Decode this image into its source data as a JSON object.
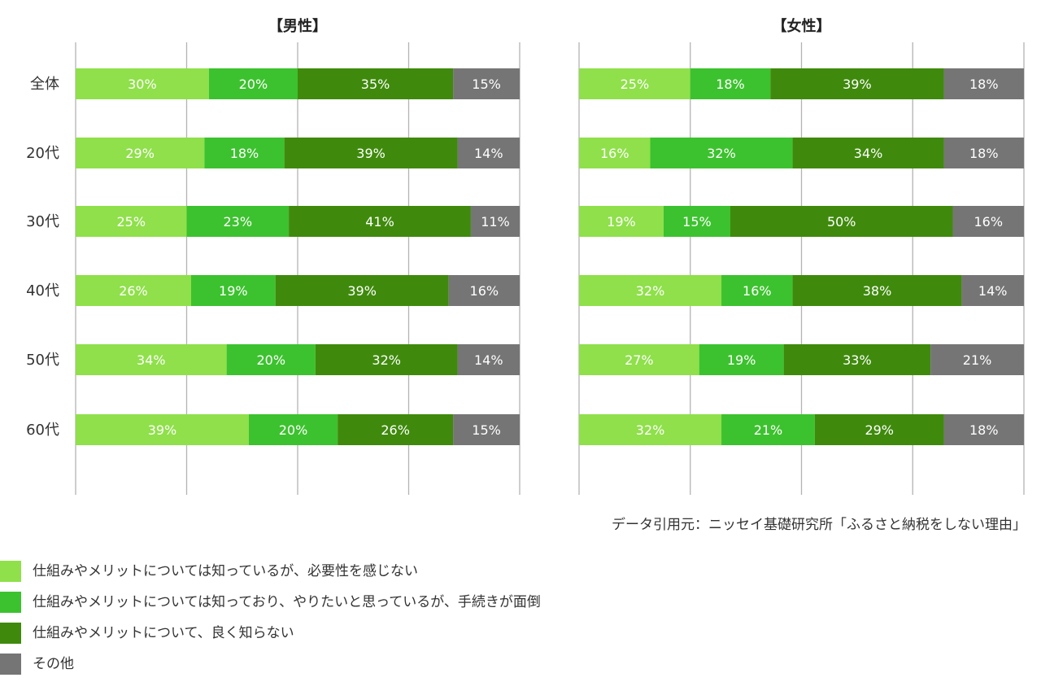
{
  "chart_data": {
    "type": "bar",
    "orientation": "horizontal-stacked-100",
    "categories": [
      "全体",
      "20代",
      "30代",
      "40代",
      "50代",
      "60代"
    ],
    "series_colors": [
      "#8fe04a",
      "#3cc22e",
      "#3f8a0c",
      "#757575"
    ],
    "legend": [
      "仕組みやメリットについては知っているが、必要性を感じない",
      "仕組みやメリットについては知っており、やりたいと思っているが、手続きが面倒",
      "仕組みやメリットについて、良く知らない",
      "その他"
    ],
    "legend_position": "bottom-left",
    "xlim": [
      0,
      100
    ],
    "grid": true,
    "panels": [
      {
        "title": "【男性】",
        "values": [
          [
            30,
            20,
            35,
            15
          ],
          [
            29,
            18,
            39,
            14
          ],
          [
            25,
            23,
            41,
            11
          ],
          [
            26,
            19,
            39,
            16
          ],
          [
            34,
            20,
            32,
            14
          ],
          [
            39,
            20,
            26,
            15
          ]
        ],
        "labels": [
          [
            "30%",
            "20%",
            "35%",
            "15%"
          ],
          [
            "29%",
            "18%",
            "39%",
            "14%"
          ],
          [
            "25%",
            "23%",
            "41%",
            "11%"
          ],
          [
            "26%",
            "19%",
            "39%",
            "16%"
          ],
          [
            "34%",
            "20%",
            "32%",
            "14%"
          ],
          [
            "39%",
            "20%",
            "26%",
            "15%"
          ]
        ]
      },
      {
        "title": "【女性】",
        "values": [
          [
            25,
            18,
            39,
            18
          ],
          [
            16,
            32,
            34,
            18
          ],
          [
            19,
            15,
            50,
            16
          ],
          [
            32,
            16,
            38,
            14
          ],
          [
            27,
            19,
            33,
            21
          ],
          [
            32,
            21,
            29,
            18
          ]
        ],
        "labels": [
          [
            "25%",
            "18%",
            "39%",
            "18%"
          ],
          [
            "16%",
            "32%",
            "34%",
            "18%"
          ],
          [
            "19%",
            "15%",
            "50%",
            "16%"
          ],
          [
            "32%",
            "16%",
            "38%",
            "14%"
          ],
          [
            "27%",
            "19%",
            "33%",
            "21%"
          ],
          [
            "32%",
            "21%",
            "29%",
            "18%"
          ]
        ]
      }
    ]
  },
  "source_note": "データ引用元：ニッセイ基礎研究所「ふるさと納税をしない理由」"
}
